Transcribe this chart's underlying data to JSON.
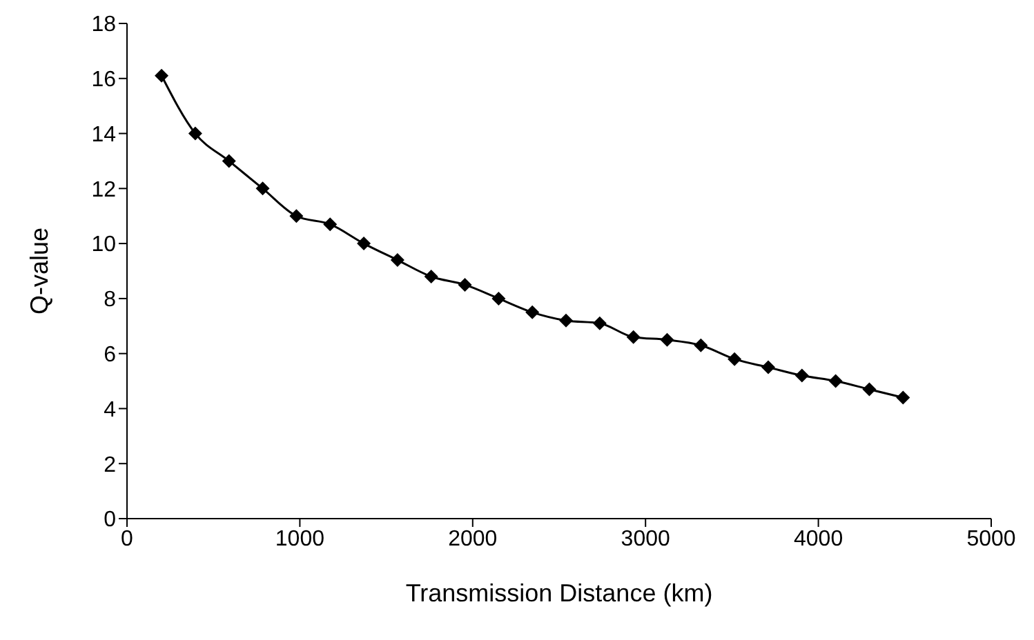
{
  "chart_data": {
    "type": "line",
    "xlabel": "Transmission Distance (km)",
    "ylabel": "Q-value",
    "x": [
      200,
      395,
      590,
      785,
      980,
      1175,
      1370,
      1565,
      1760,
      1955,
      2150,
      2345,
      2540,
      2735,
      2930,
      3125,
      3320,
      3515,
      3710,
      3905,
      4100,
      4295,
      4490
    ],
    "series": [
      {
        "color": "#000000",
        "values": [
          16.1,
          14.0,
          13.0,
          12.0,
          11.0,
          10.7,
          10.0,
          9.4,
          8.8,
          8.5,
          8.0,
          7.5,
          7.2,
          7.1,
          6.6,
          6.5,
          6.3,
          5.8,
          5.5,
          5.2,
          5.0,
          4.7,
          4.4
        ]
      }
    ],
    "xlim": [
      0,
      5000
    ],
    "xticks": [
      0,
      1000,
      2000,
      3000,
      4000,
      5000
    ],
    "ylim": [
      0,
      18
    ],
    "yticks": [
      0,
      2,
      4,
      6,
      8,
      10,
      12,
      14,
      16,
      18
    ],
    "grid": false,
    "legend": false,
    "marker": "diamond",
    "line_style": "solid"
  }
}
